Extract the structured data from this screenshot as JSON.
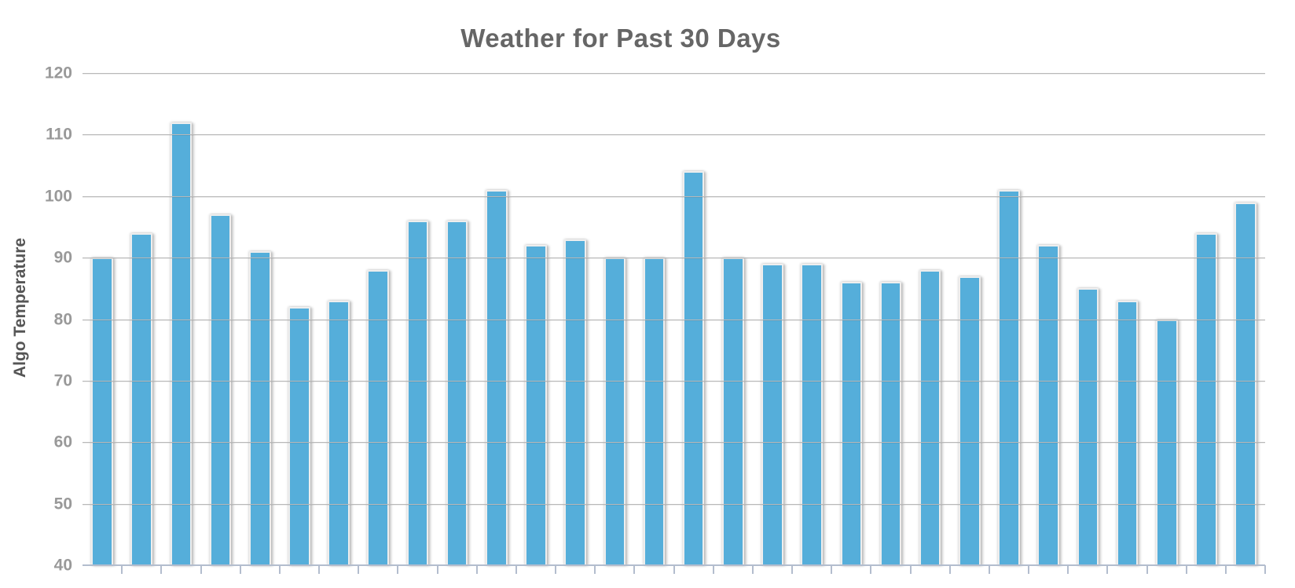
{
  "chart_data": {
    "type": "bar",
    "title": "Weather for Past 30 Days",
    "xlabel": "",
    "ylabel": "Algo Temperature",
    "ylim": [
      40,
      120
    ],
    "yticks": [
      120,
      110,
      100,
      90,
      80,
      70,
      60,
      50,
      40
    ],
    "x_tick_labels": [],
    "grid": true,
    "legend": false,
    "values": [
      90,
      94,
      112,
      97,
      91,
      82,
      83,
      88,
      96,
      96,
      101,
      92,
      93,
      90,
      90,
      104,
      90,
      89,
      89,
      86,
      86,
      88,
      87,
      101,
      92,
      85,
      83,
      80,
      94,
      99
    ],
    "colors": {
      "bar_fill": "#55AEDA",
      "bar_border": "#EEEEEE",
      "gridline": "#B8B8B8",
      "axis_line": "#B3BDCE",
      "title_text": "#666666",
      "tick_label": "#999999",
      "axis_label": "#555555",
      "background": "#FFFFFF"
    }
  }
}
